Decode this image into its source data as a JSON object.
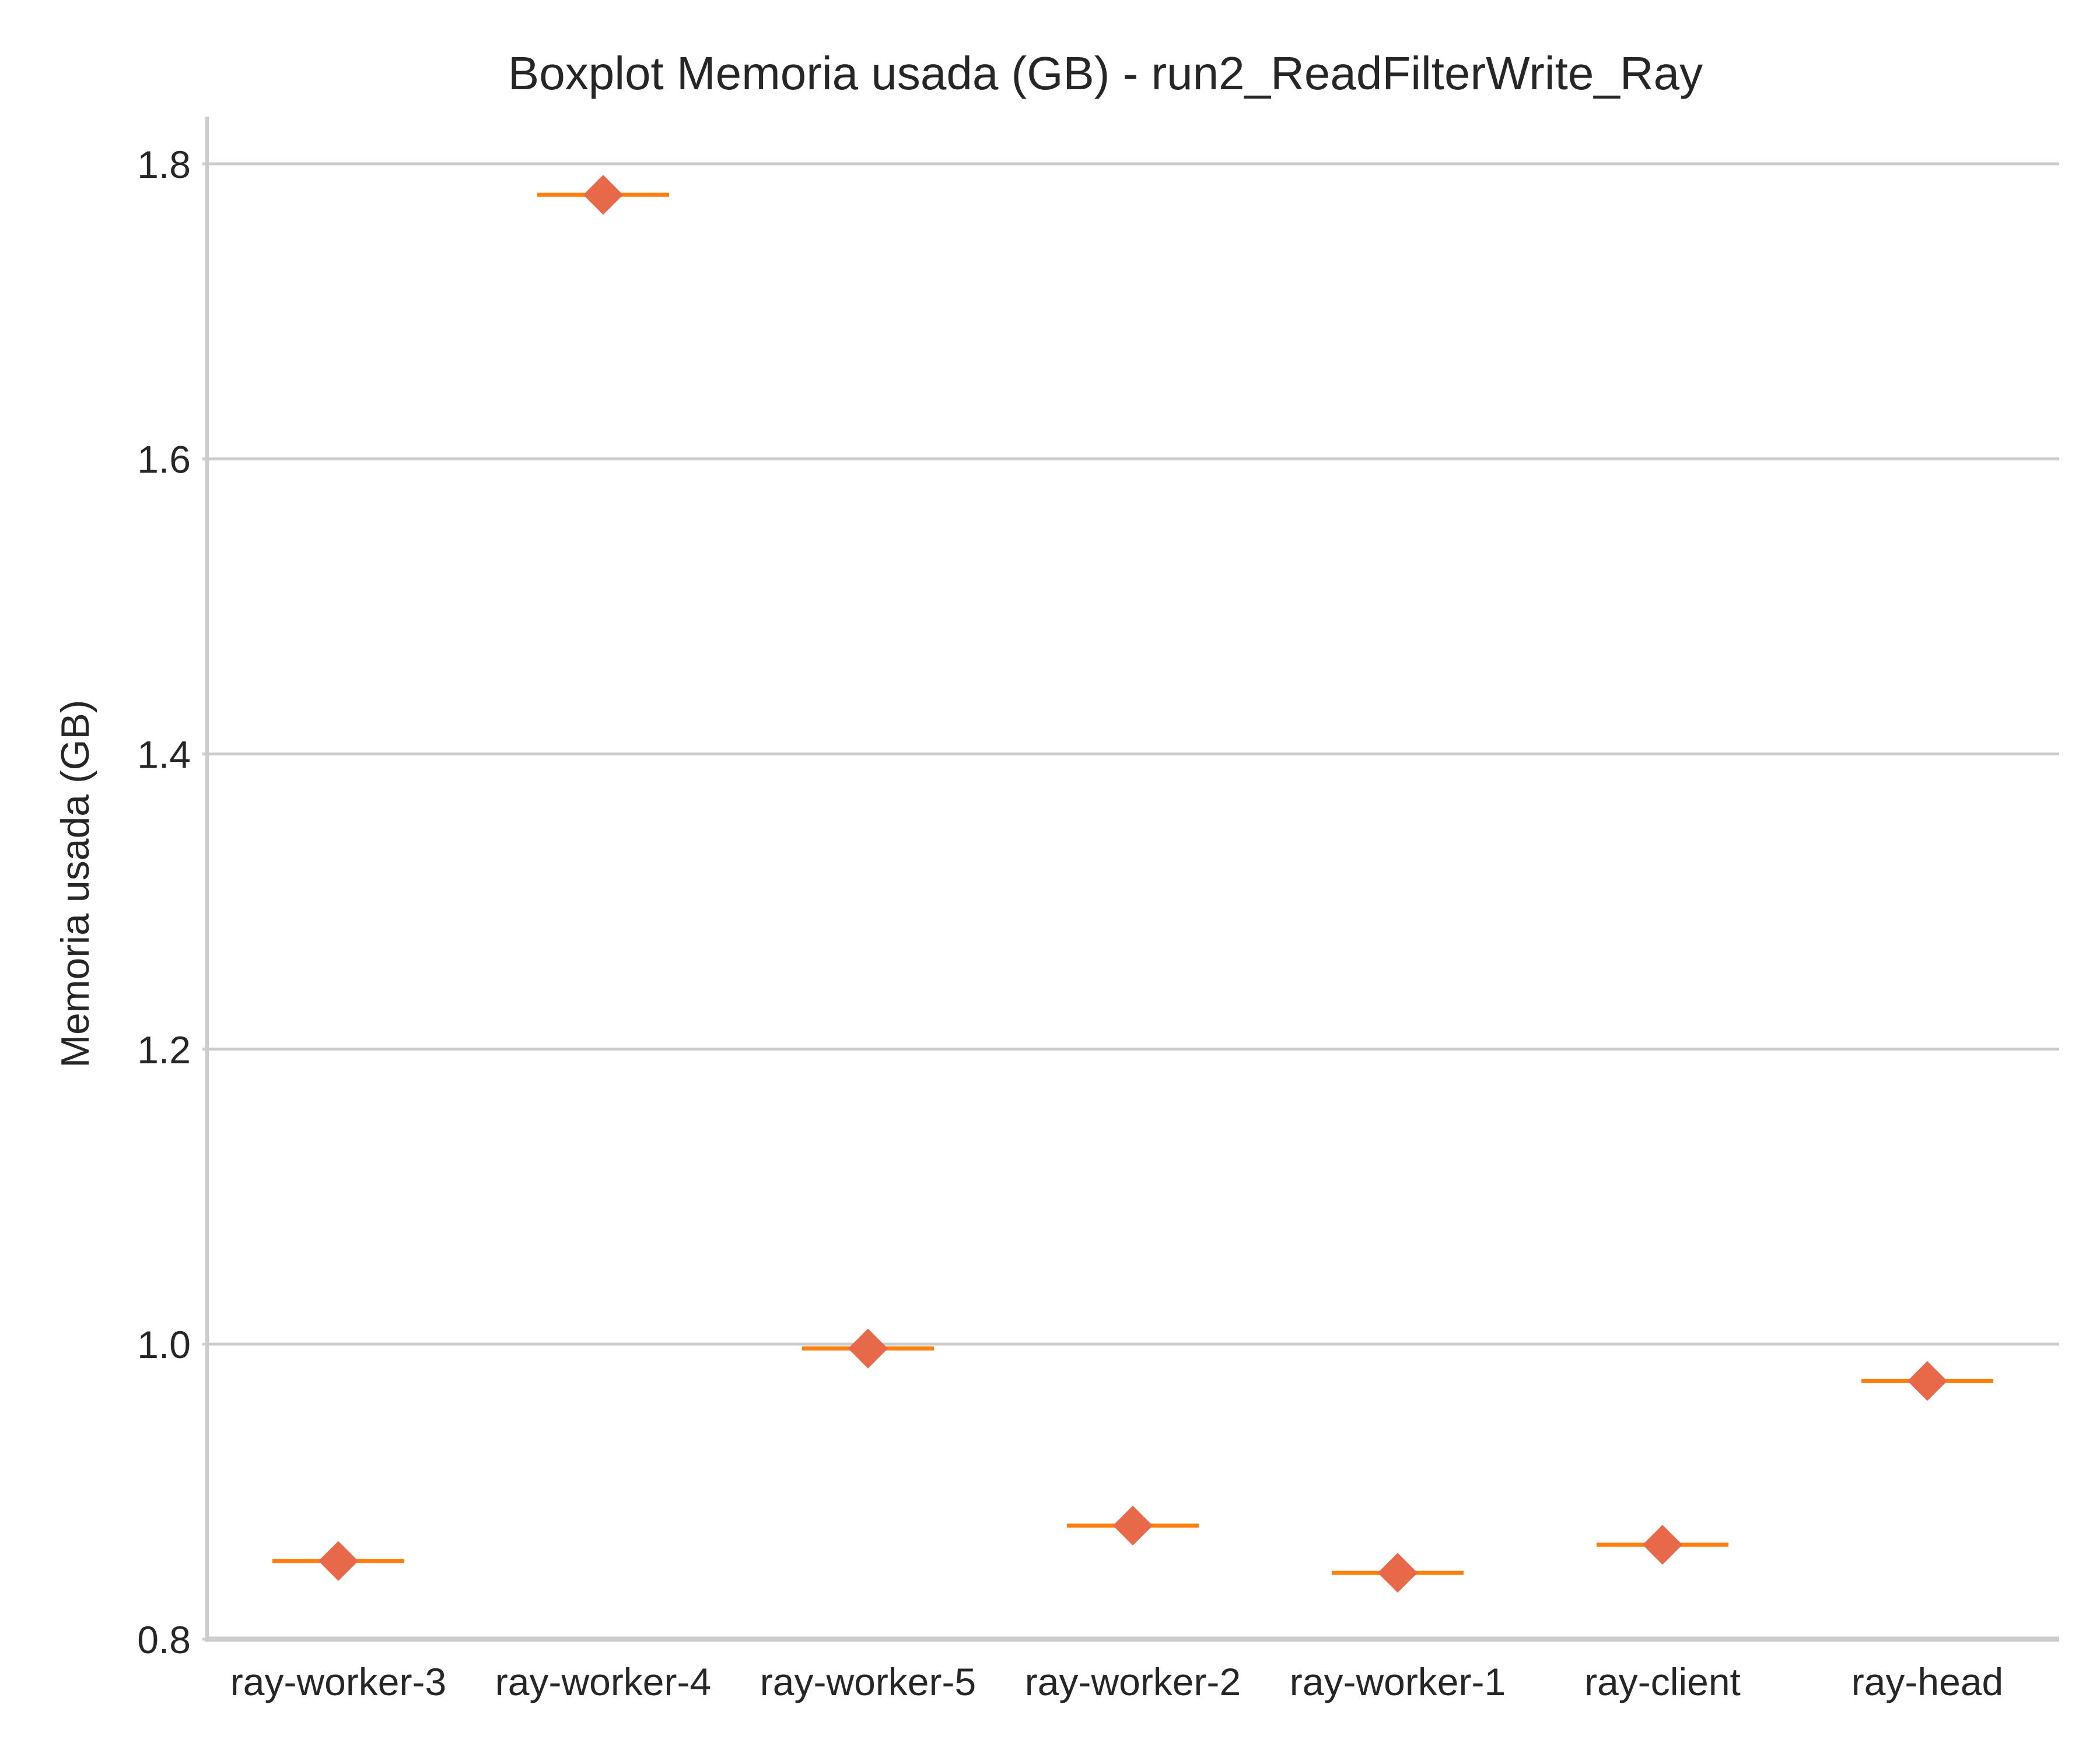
{
  "chart_data": {
    "type": "boxplot",
    "title": "Boxplot Memoria usada (GB) - run2_ReadFilterWrite_Ray",
    "xlabel": "",
    "ylabel": "Memoria usada (GB)",
    "ylim": [
      0.8,
      1.83
    ],
    "yticks": [
      0.8,
      1.0,
      1.2,
      1.4,
      1.6,
      1.8
    ],
    "ytick_labels": [
      "0.8",
      "1.0",
      "1.2",
      "1.4",
      "1.6",
      "1.8"
    ],
    "categories": [
      "ray-worker-3",
      "ray-worker-4",
      "ray-worker-5",
      "ray-worker-2",
      "ray-worker-1",
      "ray-client",
      "ray-head"
    ],
    "medians": [
      0.853,
      1.779,
      0.997,
      0.877,
      0.845,
      0.864,
      0.975
    ],
    "means": [
      0.853,
      1.779,
      0.997,
      0.877,
      0.845,
      0.864,
      0.975
    ],
    "grid": "y",
    "colors": {
      "median_line": "#ff7f0e",
      "mean_marker": "#e8684a",
      "grid": "#cccccc",
      "spine": "#cccccc",
      "text": "#262626"
    }
  }
}
